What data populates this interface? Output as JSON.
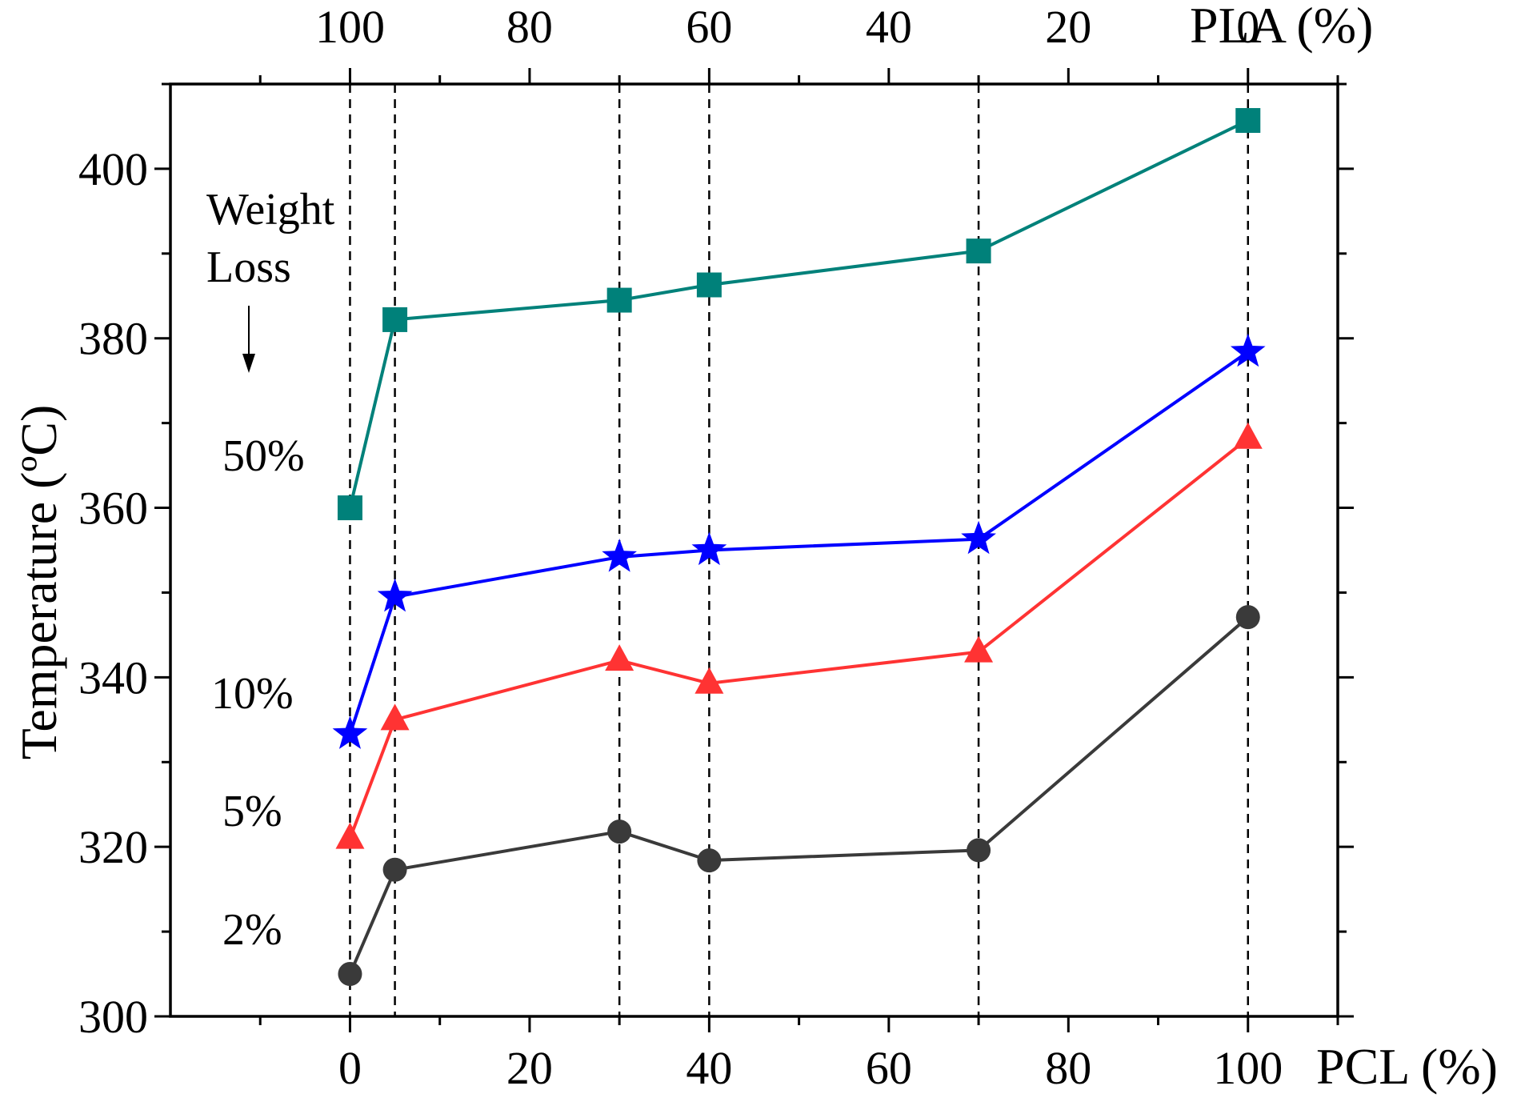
{
  "chart_data": {
    "type": "line",
    "ylabel": "Temperature (ºC)",
    "xlabel_bottom": "PCL (%)",
    "xlabel_top": "PLA (%)",
    "xlim": [
      -20,
      110
    ],
    "ylim": [
      300,
      410
    ],
    "x": [
      0,
      5,
      30,
      40,
      70,
      100
    ],
    "x_ticks": [
      0,
      20,
      40,
      60,
      80,
      100
    ],
    "x_tick_labels": [
      "0",
      "20",
      "40",
      "60",
      "80",
      "100"
    ],
    "x_top_ticks": [
      0,
      20,
      40,
      60,
      80,
      100
    ],
    "x_top_tick_labels": [
      "100",
      "80",
      "60",
      "40",
      "20",
      "0"
    ],
    "y_ticks": [
      300,
      320,
      340,
      360,
      380,
      400
    ],
    "y_tick_labels": [
      "300",
      "320",
      "340",
      "360",
      "380",
      "400"
    ],
    "grid": false,
    "series": [
      {
        "name": "50%",
        "marker": "square",
        "color": "#00817a",
        "values": [
          360,
          382.2,
          384.5,
          386.3,
          390.3,
          405.7
        ]
      },
      {
        "name": "10%",
        "marker": "star",
        "color": "#0000ff",
        "values": [
          333.3,
          349.5,
          354.2,
          355,
          356.3,
          378.4
        ]
      },
      {
        "name": "5%",
        "marker": "triangle",
        "color": "#ff3333",
        "values": [
          321,
          335,
          342,
          339.3,
          343,
          368.2
        ]
      },
      {
        "name": "2%",
        "marker": "circle",
        "color": "#3a3a3a",
        "values": [
          305,
          317.3,
          321.8,
          318.4,
          319.6,
          347.1
        ]
      }
    ],
    "annotations": {
      "weight_loss_line1": "Weight",
      "weight_loss_line2": "Loss",
      "label_50": "50%",
      "label_10": "10%",
      "label_5": "5%",
      "label_2": "2%"
    }
  }
}
